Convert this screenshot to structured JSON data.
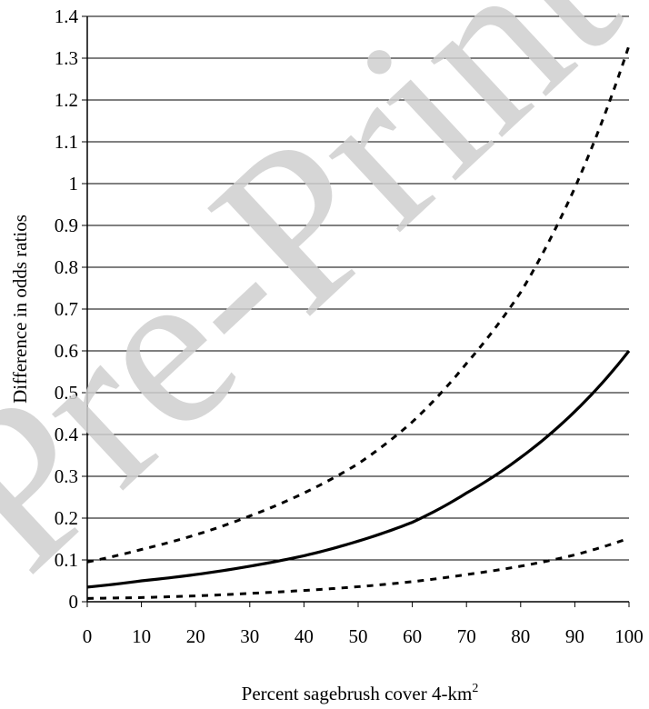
{
  "watermark": "Pre-Print",
  "chart_data": {
    "type": "line",
    "title": "",
    "xlabel": "Percent sagebrush cover 4-km",
    "xlabel_superscript": "2",
    "ylabel": "Difference in odds ratios",
    "xlim": [
      0,
      100
    ],
    "ylim": [
      0,
      1.4
    ],
    "x_ticks": [
      "0",
      "10",
      "20",
      "30",
      "40",
      "50",
      "60",
      "70",
      "80",
      "90",
      "100"
    ],
    "y_ticks": [
      "0",
      "0.1",
      "0.2",
      "0.3",
      "0.4",
      "0.5",
      "0.6",
      "0.7",
      "0.8",
      "0.9",
      "1",
      "1.1",
      "1.2",
      "1.3",
      "1.4"
    ],
    "grid": "horizontal",
    "legend": "none",
    "x": [
      0,
      10,
      20,
      30,
      40,
      50,
      60,
      70,
      80,
      90,
      100
    ],
    "series": [
      {
        "style": "dashed",
        "color": "#000000",
        "values": [
          0.095,
          0.125,
          0.16,
          0.205,
          0.26,
          0.33,
          0.43,
          0.57,
          0.74,
          0.99,
          1.33
        ]
      },
      {
        "style": "solid",
        "color": "#000000",
        "values": [
          0.035,
          0.05,
          0.065,
          0.085,
          0.11,
          0.145,
          0.19,
          0.26,
          0.345,
          0.455,
          0.6
        ]
      },
      {
        "style": "dashed",
        "color": "#000000",
        "values": [
          0.008,
          0.01,
          0.014,
          0.02,
          0.027,
          0.036,
          0.048,
          0.065,
          0.085,
          0.112,
          0.152
        ]
      }
    ]
  }
}
